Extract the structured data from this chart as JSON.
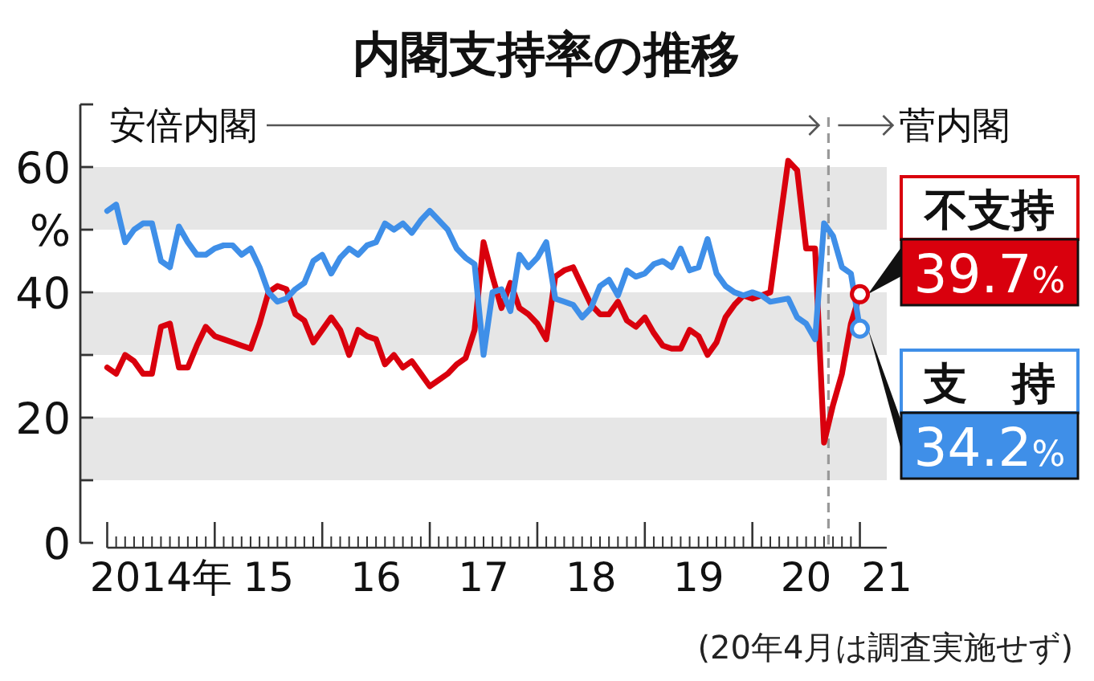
{
  "chart_data": {
    "type": "line",
    "title": "内閣支持率の推移",
    "x": [
      "2014-01",
      "2014-02",
      "2014-03",
      "2014-04",
      "2014-05",
      "2014-06",
      "2014-07",
      "2014-08",
      "2014-09",
      "2014-10",
      "2014-11",
      "2014-12",
      "2015-01",
      "2015-02",
      "2015-03",
      "2015-04",
      "2015-05",
      "2015-06",
      "2015-07",
      "2015-08",
      "2015-09",
      "2015-10",
      "2015-11",
      "2015-12",
      "2016-01",
      "2016-02",
      "2016-03",
      "2016-04",
      "2016-05",
      "2016-06",
      "2016-07",
      "2016-08",
      "2016-09",
      "2016-10",
      "2016-11",
      "2016-12",
      "2017-01",
      "2017-02",
      "2017-03",
      "2017-04",
      "2017-05",
      "2017-06",
      "2017-07",
      "2017-08",
      "2017-09",
      "2017-10",
      "2017-11",
      "2017-12",
      "2018-01",
      "2018-02",
      "2018-03",
      "2018-04",
      "2018-05",
      "2018-06",
      "2018-07",
      "2018-08",
      "2018-09",
      "2018-10",
      "2018-11",
      "2018-12",
      "2019-01",
      "2019-02",
      "2019-03",
      "2019-04",
      "2019-05",
      "2019-06",
      "2019-07",
      "2019-08",
      "2019-09",
      "2019-10",
      "2019-11",
      "2019-12",
      "2020-01",
      "2020-02",
      "2020-03",
      "2020-05",
      "2020-06",
      "2020-07",
      "2020-08",
      "2020-09",
      "2020-10",
      "2020-11",
      "2020-12",
      "2021-01"
    ],
    "series": [
      {
        "name": "不支持",
        "color": "#d9000d",
        "values": [
          28,
          27,
          30,
          29,
          27,
          27,
          34.5,
          35,
          28,
          28,
          31.5,
          34.5,
          33,
          32.5,
          32,
          31.5,
          31,
          35,
          40,
          41,
          40.5,
          36.5,
          35.5,
          32,
          34,
          36,
          34,
          30,
          34,
          33,
          32.5,
          28.5,
          30,
          28,
          29,
          27,
          25,
          26,
          27,
          28.5,
          29.5,
          34,
          48,
          42.5,
          37.5,
          41.5,
          37.5,
          36.5,
          35,
          32.5,
          42.5,
          43.5,
          44,
          41,
          38,
          36.5,
          36.5,
          38.5,
          35.5,
          34.5,
          36,
          33.5,
          31.5,
          31,
          31,
          34,
          33,
          30,
          32,
          36,
          38,
          39.5,
          39,
          39.5,
          40,
          61,
          59.5,
          47,
          47,
          16,
          22,
          27,
          35,
          39.7
        ]
      },
      {
        "name": "支持",
        "color": "#3f8fe8",
        "values": [
          53,
          54,
          48,
          50,
          51,
          51,
          45,
          44,
          50.5,
          48,
          46,
          46,
          47,
          47.5,
          47.5,
          46,
          47,
          44,
          40,
          38.5,
          39,
          40.5,
          41.5,
          45,
          46,
          43,
          45.5,
          47,
          46,
          47.5,
          48,
          51,
          50,
          51,
          49.5,
          51.5,
          53,
          51.5,
          50,
          47,
          45.5,
          44.5,
          30,
          40,
          40.5,
          37,
          46,
          44,
          45.5,
          48,
          39,
          38.5,
          38,
          36,
          37.5,
          41,
          42,
          39.5,
          43.5,
          42.5,
          43,
          44.5,
          45,
          44,
          47,
          43.5,
          44,
          48.5,
          43,
          41,
          40,
          39.5,
          40,
          39.5,
          38.5,
          39,
          36,
          35,
          32.5,
          51,
          49,
          44,
          43,
          34.2
        ]
      }
    ],
    "xlim": [
      "2013-10",
      "2021-04"
    ],
    "ylim": [
      0,
      70
    ],
    "yticks": [
      0,
      {
        "value": 10,
        "label": null
      },
      20,
      {
        "value": 30,
        "label": null
      },
      40,
      {
        "value": 50,
        "label": "%"
      },
      60,
      {
        "value": 70,
        "label": null
      }
    ],
    "xticks": [
      {
        "value": "2014-01",
        "label": null
      },
      {
        "value": "2015-01",
        "label": null
      },
      {
        "value": "2016-01",
        "label": null
      },
      {
        "value": "2017-01",
        "label": null
      },
      {
        "value": "2018-01",
        "label": null
      },
      {
        "value": "2019-01",
        "label": null
      },
      {
        "value": "2020-01",
        "label": null
      },
      {
        "value": "2021-01",
        "label": null
      },
      {
        "value": "2014-07",
        "label": "2014年"
      },
      {
        "value": "2015-07",
        "label": "15"
      },
      {
        "value": "2016-07",
        "label": "16"
      },
      {
        "value": "2017-07",
        "label": "17"
      },
      {
        "value": "2018-07",
        "label": "18"
      },
      {
        "value": "2019-07",
        "label": "19"
      },
      {
        "value": "2020-07",
        "label": "20"
      },
      {
        "value": "2021-04",
        "label": "21"
      }
    ],
    "bands": [
      {
        "axis": "y",
        "from": 10,
        "to": 20,
        "color": "#e6e6e6"
      },
      {
        "axis": "y",
        "from": 30,
        "to": 40,
        "color": "#e6e6e6"
      },
      {
        "axis": "y",
        "from": 50,
        "to": 60,
        "color": "#e6e6e6"
      }
    ],
    "ref_lines": [
      {
        "axis": "x",
        "value": "2020-09-16",
        "color": "#999999",
        "line_style": "dashed"
      }
    ],
    "annotations": [
      "安倍内閣",
      "菅内閣",
      "(20年4月は調査実施せず)",
      {
        "text": "39.7%",
        "x": "2021-01",
        "y": 39.7
      },
      {
        "text": "34.2%",
        "x": "2021-01",
        "y": 34.2
      }
    ]
  }
}
